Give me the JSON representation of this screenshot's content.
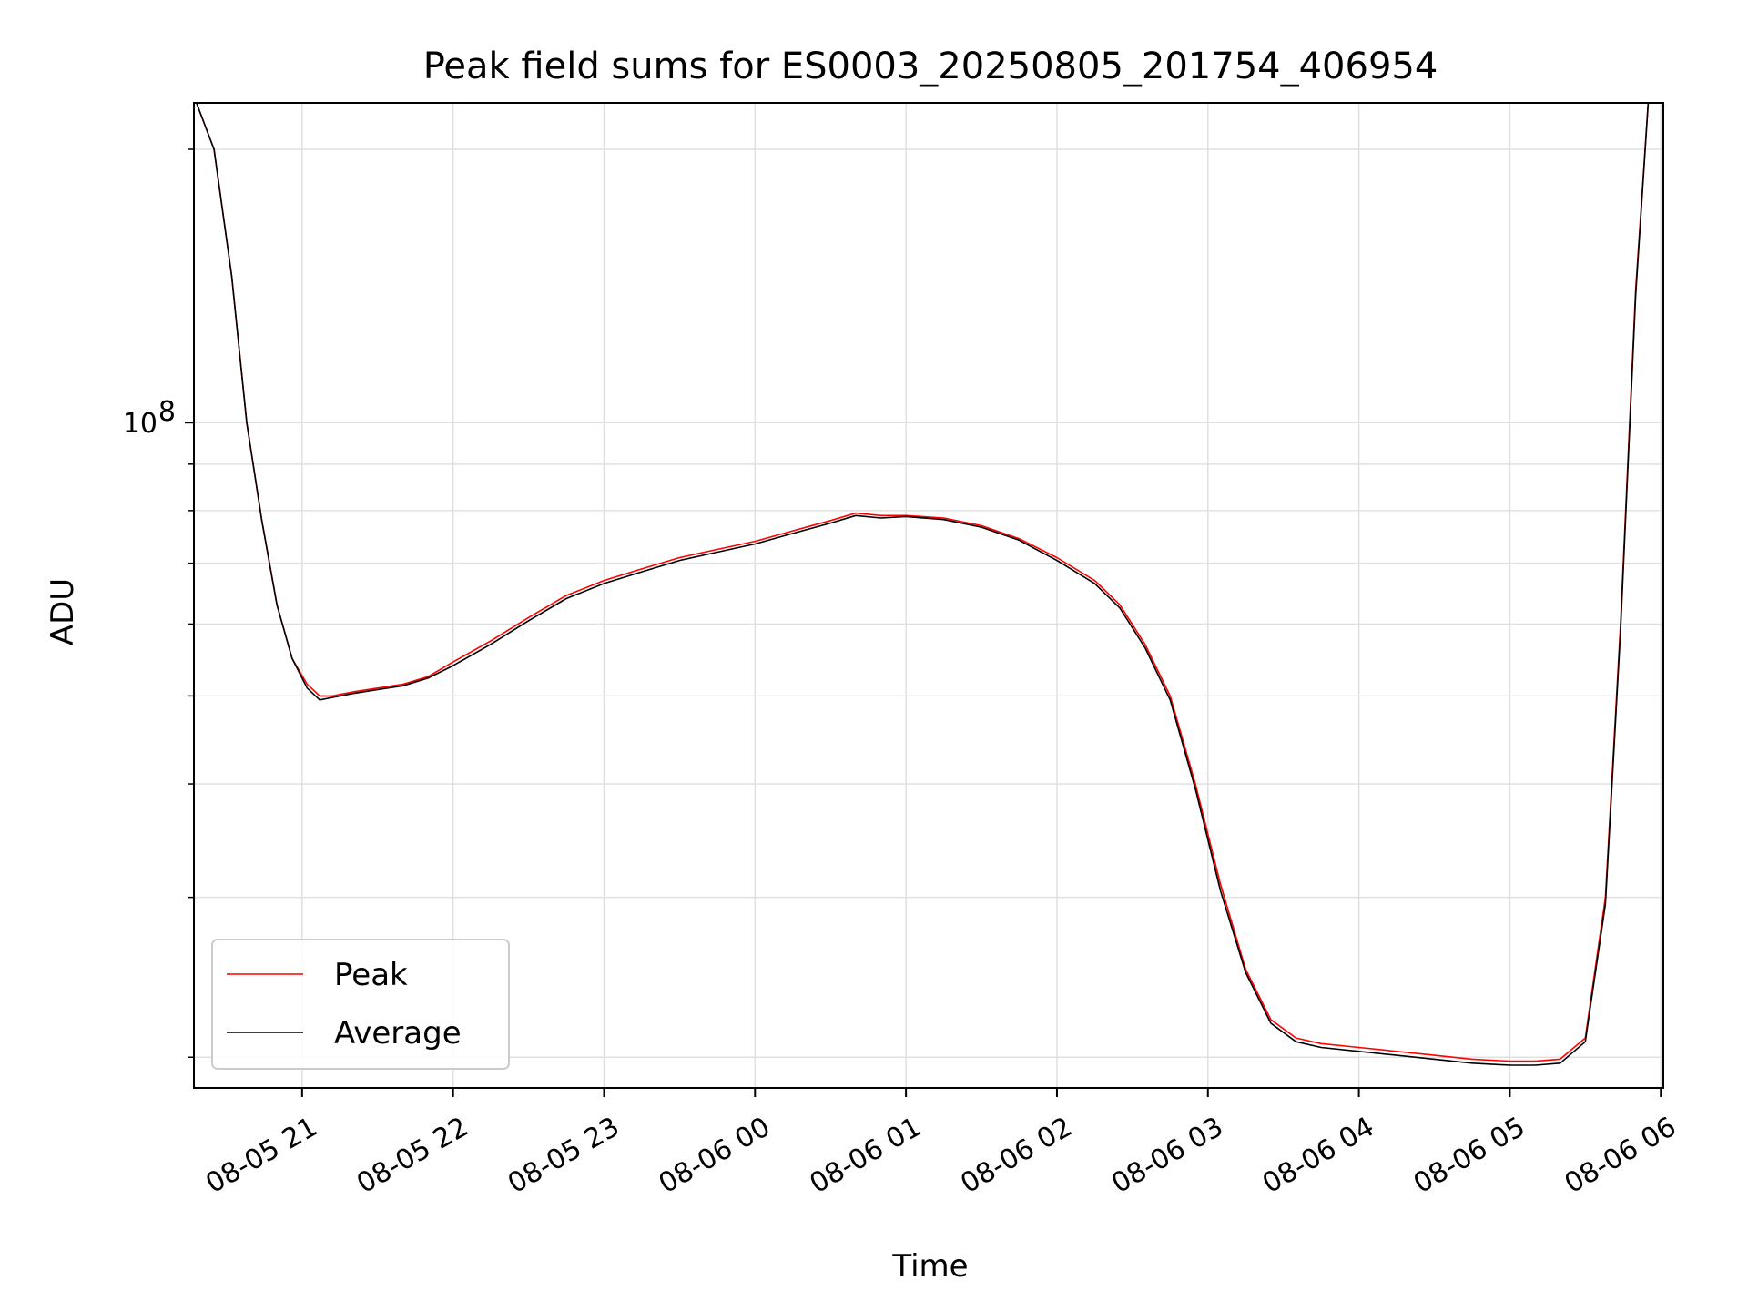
{
  "chart_data": {
    "type": "line",
    "title": "Peak field sums for ES0003_20250805_201754_406954",
    "xlabel": "Time",
    "ylabel": "ADU",
    "x_ticks": [
      "08-05 21",
      "08-05 22",
      "08-05 23",
      "08-06 00",
      "08-06 01",
      "08-06 02",
      "08-06 03",
      "08-06 04",
      "08-06 05",
      "08-06 06"
    ],
    "y_ticks": [
      {
        "base": "10",
        "exp": "8",
        "value": 100000000
      }
    ],
    "y_scale": "log",
    "xlim": [
      "2025-08-05 20:17",
      "2025-08-06 06:01"
    ],
    "ylim": [
      18500000,
      225000000
    ],
    "grid": true,
    "legend_position": "lower-left",
    "series": [
      {
        "name": "Peak",
        "color": "#ff0000",
        "x": [
          "2025-08-05 20:18",
          "2025-08-05 20:25",
          "2025-08-05 20:32",
          "2025-08-05 20:38",
          "2025-08-05 20:44",
          "2025-08-05 20:50",
          "2025-08-05 20:56",
          "2025-08-05 21:02",
          "2025-08-05 21:07",
          "2025-08-05 21:12",
          "2025-08-05 21:20",
          "2025-08-05 21:30",
          "2025-08-05 21:40",
          "2025-08-05 21:50",
          "2025-08-05 22:00",
          "2025-08-05 22:15",
          "2025-08-05 22:30",
          "2025-08-05 22:45",
          "2025-08-05 23:00",
          "2025-08-05 23:15",
          "2025-08-05 23:30",
          "2025-08-05 23:45",
          "2025-08-06 00:00",
          "2025-08-06 00:15",
          "2025-08-06 00:30",
          "2025-08-06 00:40",
          "2025-08-06 00:50",
          "2025-08-06 01:00",
          "2025-08-06 01:15",
          "2025-08-06 01:30",
          "2025-08-06 01:45",
          "2025-08-06 02:00",
          "2025-08-06 02:15",
          "2025-08-06 02:25",
          "2025-08-06 02:35",
          "2025-08-06 02:45",
          "2025-08-06 02:55",
          "2025-08-06 03:05",
          "2025-08-06 03:15",
          "2025-08-06 03:25",
          "2025-08-06 03:35",
          "2025-08-06 03:45",
          "2025-08-06 04:00",
          "2025-08-06 04:15",
          "2025-08-06 04:30",
          "2025-08-06 04:45",
          "2025-08-06 05:00",
          "2025-08-06 05:10",
          "2025-08-06 05:20",
          "2025-08-06 05:30",
          "2025-08-06 05:38",
          "2025-08-06 05:44",
          "2025-08-06 05:50",
          "2025-08-06 05:55"
        ],
        "values": [
          225000000,
          200000000,
          145000000,
          100000000,
          78000000,
          63000000,
          55000000,
          51500000,
          50000000,
          50000000,
          50500000,
          51000000,
          51500000,
          52500000,
          54500000,
          57500000,
          61000000,
          64500000,
          67000000,
          69000000,
          71000000,
          72500000,
          74000000,
          76000000,
          78000000,
          79500000,
          79000000,
          79000000,
          78500000,
          77000000,
          74500000,
          71000000,
          67000000,
          63000000,
          57000000,
          50000000,
          40000000,
          31000000,
          25000000,
          22000000,
          21000000,
          20700000,
          20500000,
          20300000,
          20100000,
          19900000,
          19800000,
          19800000,
          19900000,
          21000000,
          30000000,
          60000000,
          140000000,
          225000000
        ]
      },
      {
        "name": "Average",
        "color": "#000000",
        "x": [
          "2025-08-05 20:18",
          "2025-08-05 20:25",
          "2025-08-05 20:32",
          "2025-08-05 20:38",
          "2025-08-05 20:44",
          "2025-08-05 20:50",
          "2025-08-05 20:56",
          "2025-08-05 21:02",
          "2025-08-05 21:07",
          "2025-08-05 21:12",
          "2025-08-05 21:20",
          "2025-08-05 21:30",
          "2025-08-05 21:40",
          "2025-08-05 21:50",
          "2025-08-05 22:00",
          "2025-08-05 22:15",
          "2025-08-05 22:30",
          "2025-08-05 22:45",
          "2025-08-05 23:00",
          "2025-08-05 23:15",
          "2025-08-05 23:30",
          "2025-08-05 23:45",
          "2025-08-06 00:00",
          "2025-08-06 00:15",
          "2025-08-06 00:30",
          "2025-08-06 00:40",
          "2025-08-06 00:50",
          "2025-08-06 01:00",
          "2025-08-06 01:15",
          "2025-08-06 01:30",
          "2025-08-06 01:45",
          "2025-08-06 02:00",
          "2025-08-06 02:15",
          "2025-08-06 02:25",
          "2025-08-06 02:35",
          "2025-08-06 02:45",
          "2025-08-06 02:55",
          "2025-08-06 03:05",
          "2025-08-06 03:15",
          "2025-08-06 03:25",
          "2025-08-06 03:35",
          "2025-08-06 03:45",
          "2025-08-06 04:00",
          "2025-08-06 04:15",
          "2025-08-06 04:30",
          "2025-08-06 04:45",
          "2025-08-06 05:00",
          "2025-08-06 05:10",
          "2025-08-06 05:20",
          "2025-08-06 05:30",
          "2025-08-06 05:38",
          "2025-08-06 05:44",
          "2025-08-06 05:50",
          "2025-08-06 05:55"
        ],
        "values": [
          225000000,
          200000000,
          145000000,
          100000000,
          78000000,
          63000000,
          55000000,
          51000000,
          49500000,
          49800000,
          50300000,
          50800000,
          51300000,
          52300000,
          54000000,
          57000000,
          60500000,
          64000000,
          66500000,
          68500000,
          70500000,
          72000000,
          73500000,
          75500000,
          77500000,
          79000000,
          78500000,
          78800000,
          78200000,
          76700000,
          74200000,
          70500000,
          66500000,
          62500000,
          56500000,
          49500000,
          39500000,
          30500000,
          24800000,
          21800000,
          20800000,
          20500000,
          20300000,
          20100000,
          19900000,
          19700000,
          19600000,
          19600000,
          19700000,
          20800000,
          29500000,
          59000000,
          138000000,
          225000000
        ]
      }
    ],
    "annotations": []
  }
}
